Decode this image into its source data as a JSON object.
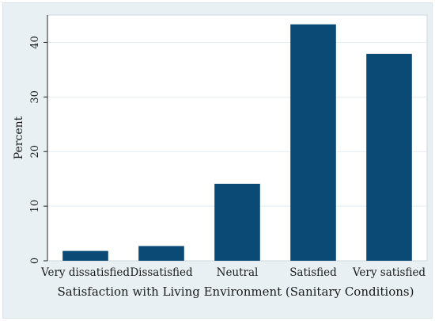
{
  "chart_data": {
    "type": "bar",
    "title": "",
    "xlabel": "Satisfaction with Living Environment (Sanitary Conditions)",
    "ylabel": "Percent",
    "categories": [
      "Very dissatisfied",
      "Dissatisfied",
      "Neutral",
      "Satisfied",
      "Very satisfied"
    ],
    "values": [
      1.8,
      2.7,
      14.1,
      43.3,
      37.9
    ],
    "ylim": [
      0,
      45
    ],
    "yticks": [
      0,
      10,
      20,
      30,
      40
    ],
    "grid": true,
    "colors": {
      "bar": "#0a4a74",
      "frame_bg": "#e8f0f3",
      "plot_bg": "#ffffff",
      "grid": "#e3ecf1"
    }
  }
}
